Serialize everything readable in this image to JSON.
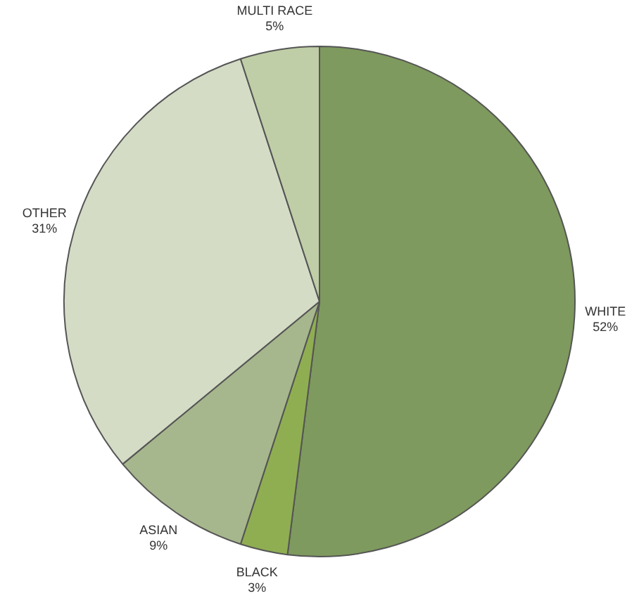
{
  "chart_data": {
    "type": "pie",
    "categories": [
      "WHITE",
      "BLACK",
      "ASIAN",
      "OTHER",
      "MULTI RACE"
    ],
    "values": [
      52,
      3,
      9,
      31,
      5
    ],
    "colors": [
      "#7e9a5e",
      "#8fae52",
      "#a7b78d",
      "#d4dcc6",
      "#bfcea6"
    ],
    "value_labels": [
      "52%",
      "3%",
      "9%",
      "31%",
      "5%"
    ],
    "legend": false
  }
}
